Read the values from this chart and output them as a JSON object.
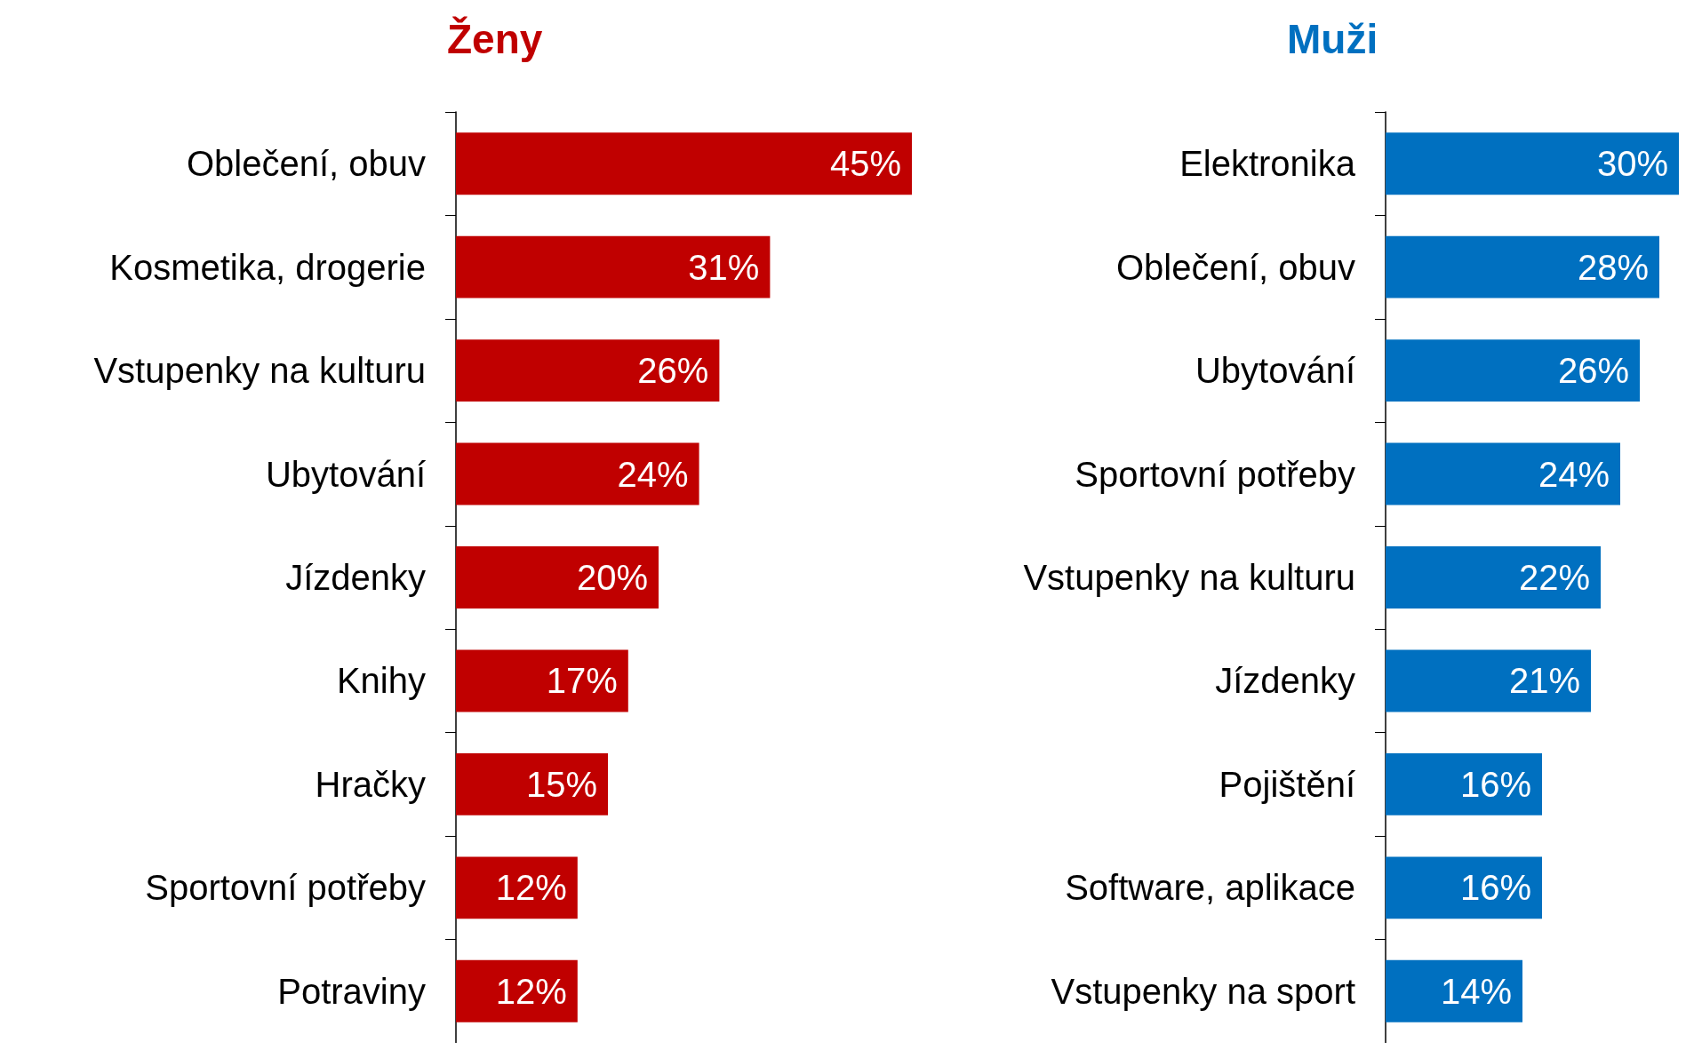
{
  "chart_data": [
    {
      "type": "bar",
      "orientation": "horizontal",
      "title": "Ženy",
      "categories": [
        "Oblečení, obuv",
        "Kosmetika, drogerie",
        "Vstupenky na kulturu",
        "Ubytování",
        "Jízdenky",
        "Knihy",
        "Hračky",
        "Sportovní potřeby",
        "Potraviny"
      ],
      "values": [
        45,
        31,
        26,
        24,
        20,
        17,
        15,
        12,
        12
      ],
      "value_labels": [
        "45%",
        "31%",
        "26%",
        "24%",
        "20%",
        "17%",
        "15%",
        "12%",
        "12%"
      ],
      "color": "#c00000",
      "tick_labels": "y"
    },
    {
      "type": "bar",
      "orientation": "horizontal",
      "title": "Muži",
      "categories": [
        "Elektronika",
        "Oblečení, obuv",
        "Ubytování",
        "Sportovní potřeby",
        "Vstupenky na kulturu",
        "Jízdenky",
        "Pojištění",
        "Software, aplikace",
        "Vstupenky na sport"
      ],
      "values": [
        30,
        28,
        26,
        24,
        22,
        21,
        16,
        16,
        14
      ],
      "value_labels": [
        "30%",
        "28%",
        "26%",
        "24%",
        "22%",
        "21%",
        "16%",
        "16%",
        "14%"
      ],
      "color": "#0070c0",
      "tick_labels": "y"
    }
  ]
}
